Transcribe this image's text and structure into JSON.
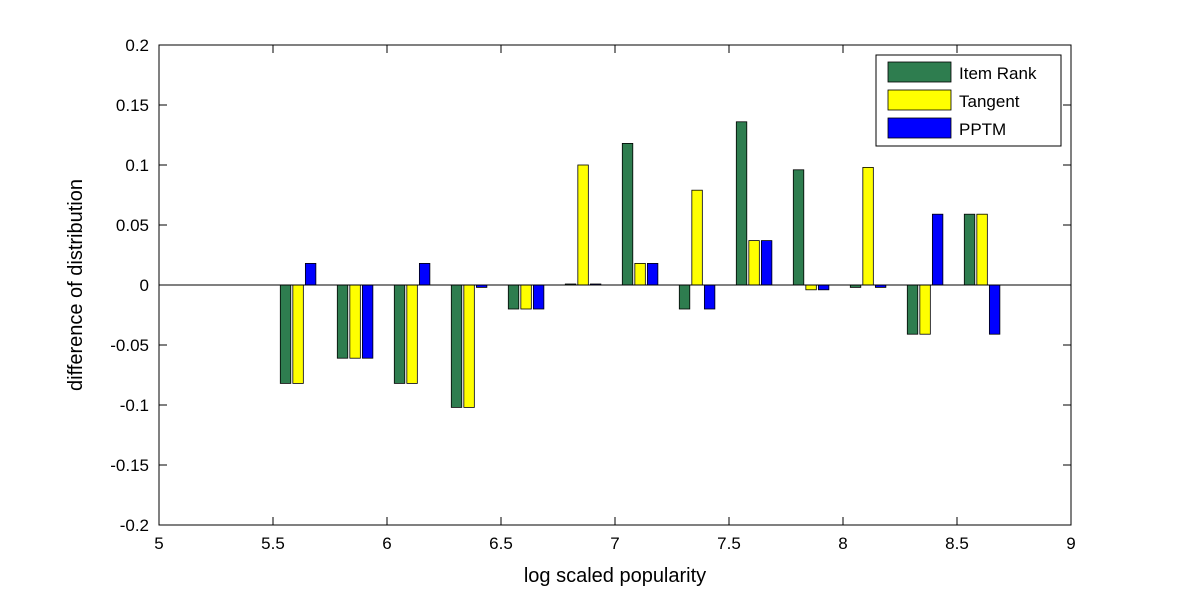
{
  "chart_data": {
    "type": "bar",
    "title": "",
    "xlabel": "log scaled popularity",
    "ylabel": "difference of distribution",
    "xlim": [
      5,
      9
    ],
    "ylim": [
      -0.2,
      0.2
    ],
    "xticks": [
      5,
      5.5,
      6,
      6.5,
      7,
      7.5,
      8,
      8.5,
      9
    ],
    "xtick_labels": [
      "5",
      "5.5",
      "6",
      "6.5",
      "7",
      "7.5",
      "8",
      "8.5",
      "9"
    ],
    "yticks": [
      -0.2,
      -0.15,
      -0.1,
      -0.05,
      0,
      0.05,
      0.1,
      0.15,
      0.2
    ],
    "ytick_labels": [
      "-0.2",
      "-0.15",
      "-0.1",
      "-0.05",
      "0",
      "0.05",
      "0.1",
      "0.15",
      "0.2"
    ],
    "grid": false,
    "legend_position": "top-right",
    "x": [
      5.61,
      5.86,
      6.11,
      6.36,
      6.61,
      6.86,
      7.11,
      7.36,
      7.61,
      7.86,
      8.11,
      8.36,
      8.61
    ],
    "series": [
      {
        "name": "Item Rank",
        "color": "#2e7d4f",
        "values": [
          -0.082,
          -0.061,
          -0.082,
          -0.102,
          -0.02,
          0,
          0.118,
          -0.02,
          0.136,
          0.096,
          -0.002,
          -0.041,
          0.059
        ]
      },
      {
        "name": "Tangent",
        "color": "#ffff00",
        "values": [
          -0.082,
          -0.061,
          -0.082,
          -0.102,
          -0.02,
          0.1,
          0.018,
          0.079,
          0.037,
          -0.004,
          0.098,
          -0.041,
          0.059
        ]
      },
      {
        "name": "PPTM",
        "color": "#0000ff",
        "values": [
          0.018,
          -0.061,
          0.018,
          -0.002,
          -0.02,
          0,
          0.018,
          -0.02,
          0.037,
          -0.004,
          -0.002,
          0.059,
          -0.041
        ]
      }
    ]
  }
}
